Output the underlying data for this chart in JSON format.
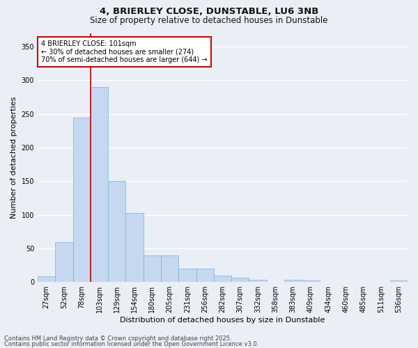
{
  "title1": "4, BRIERLEY CLOSE, DUNSTABLE, LU6 3NB",
  "title2": "Size of property relative to detached houses in Dunstable",
  "xlabel": "Distribution of detached houses by size in Dunstable",
  "ylabel": "Number of detached properties",
  "bar_color": "#c5d8f0",
  "bar_edge_color": "#7ab0d8",
  "vline_color": "#cc0000",
  "vline_x": 2.5,
  "categories": [
    "27sqm",
    "52sqm",
    "78sqm",
    "103sqm",
    "129sqm",
    "154sqm",
    "180sqm",
    "205sqm",
    "231sqm",
    "256sqm",
    "282sqm",
    "307sqm",
    "332sqm",
    "358sqm",
    "383sqm",
    "409sqm",
    "434sqm",
    "460sqm",
    "485sqm",
    "511sqm",
    "536sqm"
  ],
  "values": [
    8,
    59,
    244,
    290,
    150,
    103,
    40,
    40,
    20,
    20,
    10,
    6,
    3,
    0,
    3,
    2,
    0,
    0,
    0,
    0,
    2
  ],
  "ylim": [
    0,
    370
  ],
  "yticks": [
    0,
    50,
    100,
    150,
    200,
    250,
    300,
    350
  ],
  "annotation_text": "4 BRIERLEY CLOSE: 101sqm\n← 30% of detached houses are smaller (274)\n70% of semi-detached houses are larger (644) →",
  "annotation_box_color": "#ffffff",
  "annotation_box_edge": "#cc0000",
  "footer1": "Contains HM Land Registry data © Crown copyright and database right 2025.",
  "footer2": "Contains public sector information licensed under the Open Government Licence v3.0.",
  "bg_color": "#eaeff5",
  "plot_bg_color": "#eaeff5",
  "grid_color": "#ffffff",
  "title_fontsize": 9.5,
  "subtitle_fontsize": 8.5,
  "tick_fontsize": 7,
  "label_fontsize": 8,
  "footer_fontsize": 6,
  "annot_fontsize": 7
}
